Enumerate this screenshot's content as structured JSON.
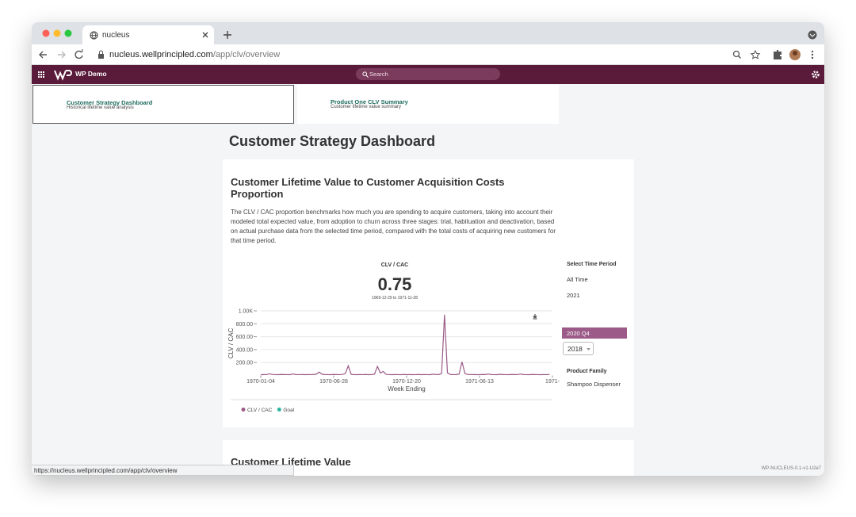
{
  "browser": {
    "tab_title": "nucleus",
    "url_host": "nucleus.wellprincipled.com",
    "url_path": "/app/clv/overview",
    "status_url": "https://nucleus.wellprincipled.com/app/clv/overview"
  },
  "app_bar": {
    "brand": "WP Demo",
    "search": "Search"
  },
  "tabs": [
    {
      "title": "Customer Strategy Dashboard",
      "subtitle": "Historical lifetime value analysis"
    },
    {
      "title": "Product One CLV Summary",
      "subtitle": "Customer lifetime value summary"
    }
  ],
  "page_title": "Customer Strategy Dashboard",
  "card": {
    "title": "Customer Lifetime Value to Customer Acquisition Costs Proportion",
    "description": "The CLV / CAC proportion benchmarks how much you are spending to acquire customers, taking into account their modeled total expected value, from adoption to churn across three stages: trial, habituation and deactivation, based on actual purchase data from the selected time period, compared with the total costs of acquiring new customers for that time period.",
    "metric_label": "CLV / CAC",
    "metric_value": 0.75,
    "date_range": "1969-12-29 to 1971-11-28"
  },
  "chart_data": {
    "type": "line",
    "ylabel": "CLV / CAC",
    "xlabel": "Week Ending",
    "x": [
      "1970-01-04",
      "1970-01-11",
      "1970-01-18",
      "1970-01-25",
      "1970-02-01",
      "1970-02-08",
      "1970-02-15",
      "1970-02-22",
      "1970-03-01",
      "1970-03-08",
      "1970-03-15",
      "1970-03-22",
      "1970-03-29",
      "1970-04-05",
      "1970-04-12",
      "1970-04-19",
      "1970-04-26",
      "1970-05-03",
      "1970-05-10",
      "1970-05-17",
      "1970-05-24",
      "1970-05-31",
      "1970-06-07",
      "1970-06-14",
      "1970-06-21",
      "1970-06-28",
      "1970-07-05",
      "1970-07-12",
      "1970-07-19",
      "1970-07-26",
      "1970-08-02",
      "1970-08-09",
      "1970-08-16",
      "1970-08-23",
      "1970-08-30",
      "1970-09-06",
      "1970-09-13",
      "1970-09-20",
      "1970-09-27",
      "1970-10-04",
      "1970-10-11",
      "1970-10-18",
      "1970-10-25",
      "1970-11-01",
      "1970-11-08",
      "1970-11-15",
      "1970-11-22",
      "1970-11-29",
      "1970-12-06",
      "1970-12-13",
      "1970-12-20",
      "1970-12-27",
      "1971-01-03",
      "1971-01-10",
      "1971-01-17",
      "1971-01-24",
      "1971-01-31",
      "1971-02-07",
      "1971-02-14",
      "1971-02-21",
      "1971-02-28",
      "1971-03-07",
      "1971-03-14",
      "1971-03-21",
      "1971-03-28",
      "1971-04-04",
      "1971-04-11",
      "1971-04-18",
      "1971-04-25",
      "1971-05-02",
      "1971-05-09",
      "1971-05-16",
      "1971-05-23",
      "1971-05-30",
      "1971-06-06",
      "1971-06-13",
      "1971-06-20",
      "1971-06-27",
      "1971-07-04",
      "1971-07-11",
      "1971-07-18",
      "1971-07-25",
      "1971-08-01",
      "1971-08-08",
      "1971-08-15",
      "1971-08-22",
      "1971-08-29",
      "1971-09-05",
      "1971-09-12",
      "1971-09-19",
      "1971-09-26",
      "1971-10-03",
      "1971-10-10",
      "1971-10-17",
      "1971-10-24",
      "1971-10-31",
      "1971-11-07",
      "1971-11-14",
      "1971-11-21",
      "1971-11-28"
    ],
    "values": [
      12,
      14,
      13,
      25,
      16,
      13,
      12,
      15,
      14,
      13,
      12,
      22,
      14,
      13,
      16,
      12,
      14,
      13,
      15,
      18,
      52,
      20,
      14,
      13,
      12,
      15,
      14,
      13,
      16,
      30,
      150,
      18,
      13,
      12,
      14,
      13,
      15,
      12,
      14,
      20,
      140,
      38,
      62,
      16,
      13,
      12,
      14,
      13,
      12,
      15,
      13,
      14,
      12,
      13,
      15,
      12,
      14,
      13,
      12,
      20,
      15,
      14,
      30,
      940,
      40,
      15,
      13,
      14,
      22,
      210,
      30,
      15,
      13,
      14,
      12,
      13,
      15,
      14,
      22,
      14,
      13,
      12,
      18,
      14,
      13,
      12,
      15,
      14,
      13,
      22,
      14,
      13,
      12,
      15,
      14,
      13,
      12,
      14,
      13,
      15
    ],
    "xlim": [
      "1970-01-04",
      "1971-12-05"
    ],
    "xticks": [
      "1970-01-04",
      "1970-06-28",
      "1970-12-20",
      "1971-06-13",
      {
        "value": "1971-12-05",
        "label": "1971-"
      }
    ],
    "ylim": [
      0,
      1000
    ],
    "yticks": [
      {
        "value": 200,
        "label": "200.00"
      },
      {
        "value": 400,
        "label": "400.00"
      },
      {
        "value": 600,
        "label": "600.00"
      },
      {
        "value": 800,
        "label": "800.00"
      },
      {
        "value": 1000,
        "label": "1.00K"
      }
    ],
    "grid": true,
    "legend": [
      {
        "name": "CLV / CAC",
        "color": "#9b5a87"
      },
      {
        "name": "Goal",
        "color": "#2bb5a0"
      }
    ]
  },
  "side": {
    "period_heading": "Select Time Period",
    "periods": [
      "All Time",
      "2021",
      "2020 Q4"
    ],
    "year_select": "2018",
    "family_heading": "Product Family",
    "family": "Shampoo Dispenser"
  },
  "next_card_title": "Customer Lifetime Value",
  "version": "WP-NUCLEUS-0.1-v1-U2e7"
}
